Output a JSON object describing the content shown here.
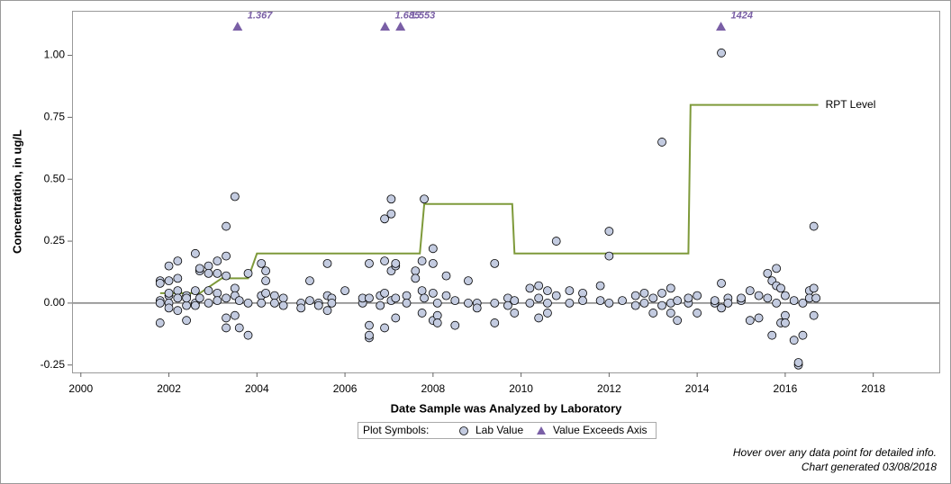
{
  "chart_data": {
    "type": "scatter",
    "xlabel": "Date Sample was Analyzed by Laboratory",
    "ylabel": "Concentration, in ug/L",
    "xlim": [
      1999.8,
      2019.5
    ],
    "xticks": [
      2000,
      2002,
      2004,
      2006,
      2008,
      2010,
      2012,
      2014,
      2016,
      2018
    ],
    "ylim": [
      -0.28,
      1.18
    ],
    "yticks": [
      -0.25,
      {
        "value": 0,
        "label": "0.00"
      },
      0.25,
      {
        "value": 0.5,
        "label": "0.50"
      },
      0.75,
      {
        "value": 1,
        "label": "1.00"
      }
    ],
    "grid": false,
    "refline": 0,
    "series": [
      {
        "name": "Lab Value",
        "color": "#c3cbe0",
        "marker": "circle",
        "x": [
          2001.8,
          2001.8,
          2001.8,
          2001.8,
          2001.8,
          2002.0,
          2002.0,
          2002.0,
          2002.0,
          2002.0,
          2002.0,
          2002.2,
          2002.2,
          2002.2,
          2002.2,
          2002.2,
          2002.4,
          2002.4,
          2002.4,
          2002.4,
          2002.6,
          2002.6,
          2002.6,
          2002.6,
          2002.7,
          2002.7,
          2002.7,
          2002.9,
          2002.9,
          2002.9,
          2002.9,
          2003.1,
          2003.1,
          2003.1,
          2003.1,
          2003.3,
          2003.3,
          2003.3,
          2003.3,
          2003.3,
          2003.3,
          2003.5,
          2003.5,
          2003.5,
          2003.5,
          2003.6,
          2003.6,
          2003.8,
          2003.8,
          2003.8,
          2004.1,
          2004.1,
          2004.1,
          2004.2,
          2004.2,
          2004.2,
          2004.4,
          2004.4,
          2004.6,
          2004.6,
          2005.0,
          2005.0,
          2005.2,
          2005.2,
          2005.4,
          2005.4,
          2005.6,
          2005.6,
          2005.6,
          2005.7,
          2005.7,
          2006.0,
          2006.4,
          2006.4,
          2006.55,
          2006.55,
          2006.55,
          2006.55,
          2006.55,
          2006.8,
          2006.8,
          2006.9,
          2006.9,
          2006.9,
          2006.9,
          2007.05,
          2007.05,
          2007.05,
          2007.05,
          2007.15,
          2007.15,
          2007.15,
          2007.15,
          2007.4,
          2007.4,
          2007.6,
          2007.6,
          2007.75,
          2007.75,
          2007.75,
          2007.8,
          2007.8,
          2008.0,
          2008.0,
          2008.0,
          2008.0,
          2008.1,
          2008.1,
          2008.1,
          2008.3,
          2008.3,
          2008.5,
          2008.5,
          2008.8,
          2008.8,
          2009.0,
          2009.0,
          2009.4,
          2009.4,
          2009.4,
          2009.7,
          2009.7,
          2009.85,
          2009.85,
          2010.2,
          2010.2,
          2010.4,
          2010.4,
          2010.4,
          2010.6,
          2010.6,
          2010.6,
          2010.8,
          2010.8,
          2011.1,
          2011.1,
          2011.4,
          2011.4,
          2011.8,
          2011.8,
          2012.0,
          2012.0,
          2012.0,
          2012.3,
          2012.6,
          2012.6,
          2012.8,
          2012.8,
          2013.0,
          2013.0,
          2013.2,
          2013.2,
          2013.2,
          2013.4,
          2013.4,
          2013.4,
          2013.55,
          2013.55,
          2013.8,
          2013.8,
          2014.0,
          2014.0,
          2014.4,
          2014.4,
          2014.55,
          2014.55,
          2014.55,
          2014.7,
          2014.7,
          2015.0,
          2015.0,
          2015.2,
          2015.2,
          2015.4,
          2015.4,
          2015.6,
          2015.6,
          2015.7,
          2015.7,
          2015.8,
          2015.8,
          2015.8,
          2015.9,
          2015.9,
          2016.0,
          2016.0,
          2016.0,
          2016.2,
          2016.2,
          2016.3,
          2016.3,
          2016.4,
          2016.4,
          2016.55,
          2016.55,
          2016.65,
          2016.65,
          2016.65,
          2016.7
        ],
        "values": [
          0.09,
          0.08,
          0.01,
          -0.08,
          0.0,
          0.15,
          0.09,
          0.03,
          0.0,
          -0.02,
          0.04,
          0.17,
          0.1,
          0.05,
          0.02,
          -0.03,
          0.03,
          -0.07,
          -0.01,
          0.02,
          0.2,
          0.05,
          0.0,
          -0.01,
          0.13,
          0.14,
          0.02,
          0.15,
          0.12,
          0.05,
          0.0,
          0.17,
          0.12,
          0.04,
          0.01,
          0.19,
          0.11,
          -0.06,
          -0.1,
          0.31,
          0.02,
          0.06,
          0.03,
          -0.05,
          0.43,
          -0.1,
          0.01,
          0.12,
          0.0,
          -0.13,
          0.16,
          0.03,
          0.0,
          0.13,
          0.09,
          0.04,
          0.03,
          0.0,
          0.02,
          -0.01,
          0.0,
          -0.02,
          0.09,
          0.01,
          0.0,
          -0.01,
          0.16,
          0.03,
          -0.03,
          0.02,
          0.0,
          0.05,
          0.0,
          0.02,
          -0.09,
          -0.14,
          -0.13,
          0.16,
          0.02,
          0.03,
          -0.01,
          0.34,
          -0.1,
          0.17,
          0.04,
          0.42,
          0.36,
          0.13,
          0.01,
          0.15,
          0.16,
          -0.06,
          0.02,
          0.03,
          0.0,
          0.13,
          0.1,
          0.17,
          0.05,
          -0.04,
          0.42,
          0.02,
          0.22,
          0.16,
          0.04,
          -0.07,
          -0.05,
          -0.08,
          0.0,
          0.11,
          0.03,
          -0.09,
          0.01,
          0.09,
          0.0,
          0.0,
          -0.02,
          0.16,
          0.0,
          -0.08,
          0.02,
          -0.01,
          -0.04,
          0.01,
          0.0,
          0.06,
          0.07,
          0.02,
          -0.06,
          0.05,
          0.0,
          -0.04,
          0.25,
          0.03,
          0.05,
          0.0,
          0.04,
          0.01,
          0.07,
          0.01,
          0.29,
          0.19,
          0.0,
          0.01,
          0.03,
          -0.01,
          0.04,
          0.0,
          0.02,
          -0.04,
          0.65,
          0.04,
          -0.01,
          0.06,
          -0.04,
          0.0,
          -0.07,
          0.01,
          0.0,
          0.02,
          0.03,
          -0.04,
          0.0,
          0.01,
          1.01,
          0.08,
          -0.02,
          0.02,
          0.0,
          0.01,
          0.02,
          0.05,
          -0.07,
          0.03,
          -0.06,
          0.12,
          0.02,
          0.09,
          -0.13,
          0.14,
          0.07,
          0.0,
          0.06,
          -0.08,
          0.03,
          -0.05,
          -0.08,
          -0.15,
          0.01,
          -0.25,
          -0.24,
          -0.13,
          0.0,
          0.05,
          0.02,
          0.31,
          0.06,
          -0.05,
          0.02
        ]
      },
      {
        "name": "Value Exceeds Axis",
        "color": "#7a5fa6",
        "marker": "triangle",
        "x": [
          2003.56,
          2006.91,
          2007.26,
          2014.54
        ],
        "values": [
          1.116,
          1.116,
          1.116,
          1.116
        ],
        "annotations": [
          "1.367",
          "1.685",
          "1.553",
          "1424"
        ]
      }
    ],
    "step_line": {
      "label": "RPT Level",
      "color": "#7e9a3a",
      "x": [
        2001.8,
        2002.7,
        2003.2,
        2003.8,
        2004.0,
        2007.7,
        2007.8,
        2009.8,
        2009.85,
        2013.8,
        2013.85,
        2016.75
      ],
      "values": [
        0.04,
        0.04,
        0.1,
        0.1,
        0.2,
        0.2,
        0.4,
        0.4,
        0.2,
        0.2,
        0.8,
        0.8
      ]
    },
    "legend_title": "Plot Symbols:",
    "footnotes": [
      "Hover over any data point for detailed info.",
      "Chart generated 03/08/2018"
    ]
  }
}
